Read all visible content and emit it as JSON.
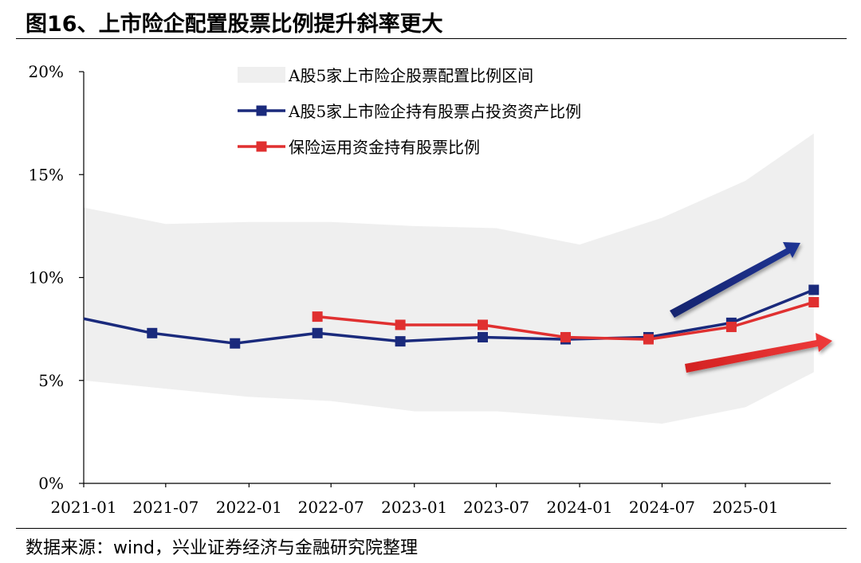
{
  "title": "图16、上市险企配置股票比例提升斜率更大",
  "source": "数据来源：wind，兴业证券经济与金融研究院整理",
  "colors": {
    "band": "#efefef",
    "listed_line": "#1a2a7c",
    "insurance_line": "#e03030"
  },
  "chart_data": {
    "type": "line",
    "x_tick_labels": [
      "2021-01",
      "2021-07",
      "2022-01",
      "2022-07",
      "2023-01",
      "2023-07",
      "2024-01",
      "2024-07",
      "2025-01"
    ],
    "y_tick_labels": [
      "0%",
      "5%",
      "10%",
      "15%",
      "20%"
    ],
    "ylim": [
      0,
      20
    ],
    "grid": false,
    "legend_position": "top",
    "band": {
      "name": "A股5家上市险企股票配置比例区间",
      "x": [
        "2021-01",
        "2021-07",
        "2022-01",
        "2022-07",
        "2023-01",
        "2023-07",
        "2024-01",
        "2024-07",
        "2025-01",
        "2025-06"
      ],
      "upper": [
        13.4,
        12.6,
        12.7,
        12.7,
        12.5,
        12.4,
        11.6,
        12.9,
        14.7,
        17.0
      ],
      "lower": [
        5.0,
        4.6,
        4.2,
        4.0,
        3.5,
        3.5,
        3.2,
        2.9,
        3.7,
        5.4
      ]
    },
    "series": [
      {
        "name": "A股5家上市险企持有股票占投资资产比例",
        "x": [
          "2021-01",
          "2021-06",
          "2021-12",
          "2022-06",
          "2022-12",
          "2023-06",
          "2023-12",
          "2024-06",
          "2024-12",
          "2025-06"
        ],
        "values": [
          8.0,
          7.3,
          6.8,
          7.3,
          6.9,
          7.1,
          7.0,
          7.1,
          7.8,
          9.4
        ]
      },
      {
        "name": "保险运用资金持有股票比例",
        "x": [
          "2022-06",
          "2022-12",
          "2023-06",
          "2023-12",
          "2024-06",
          "2024-12",
          "2025-06"
        ],
        "values": [
          8.1,
          7.7,
          7.7,
          7.1,
          7.0,
          7.6,
          8.8
        ]
      }
    ]
  }
}
